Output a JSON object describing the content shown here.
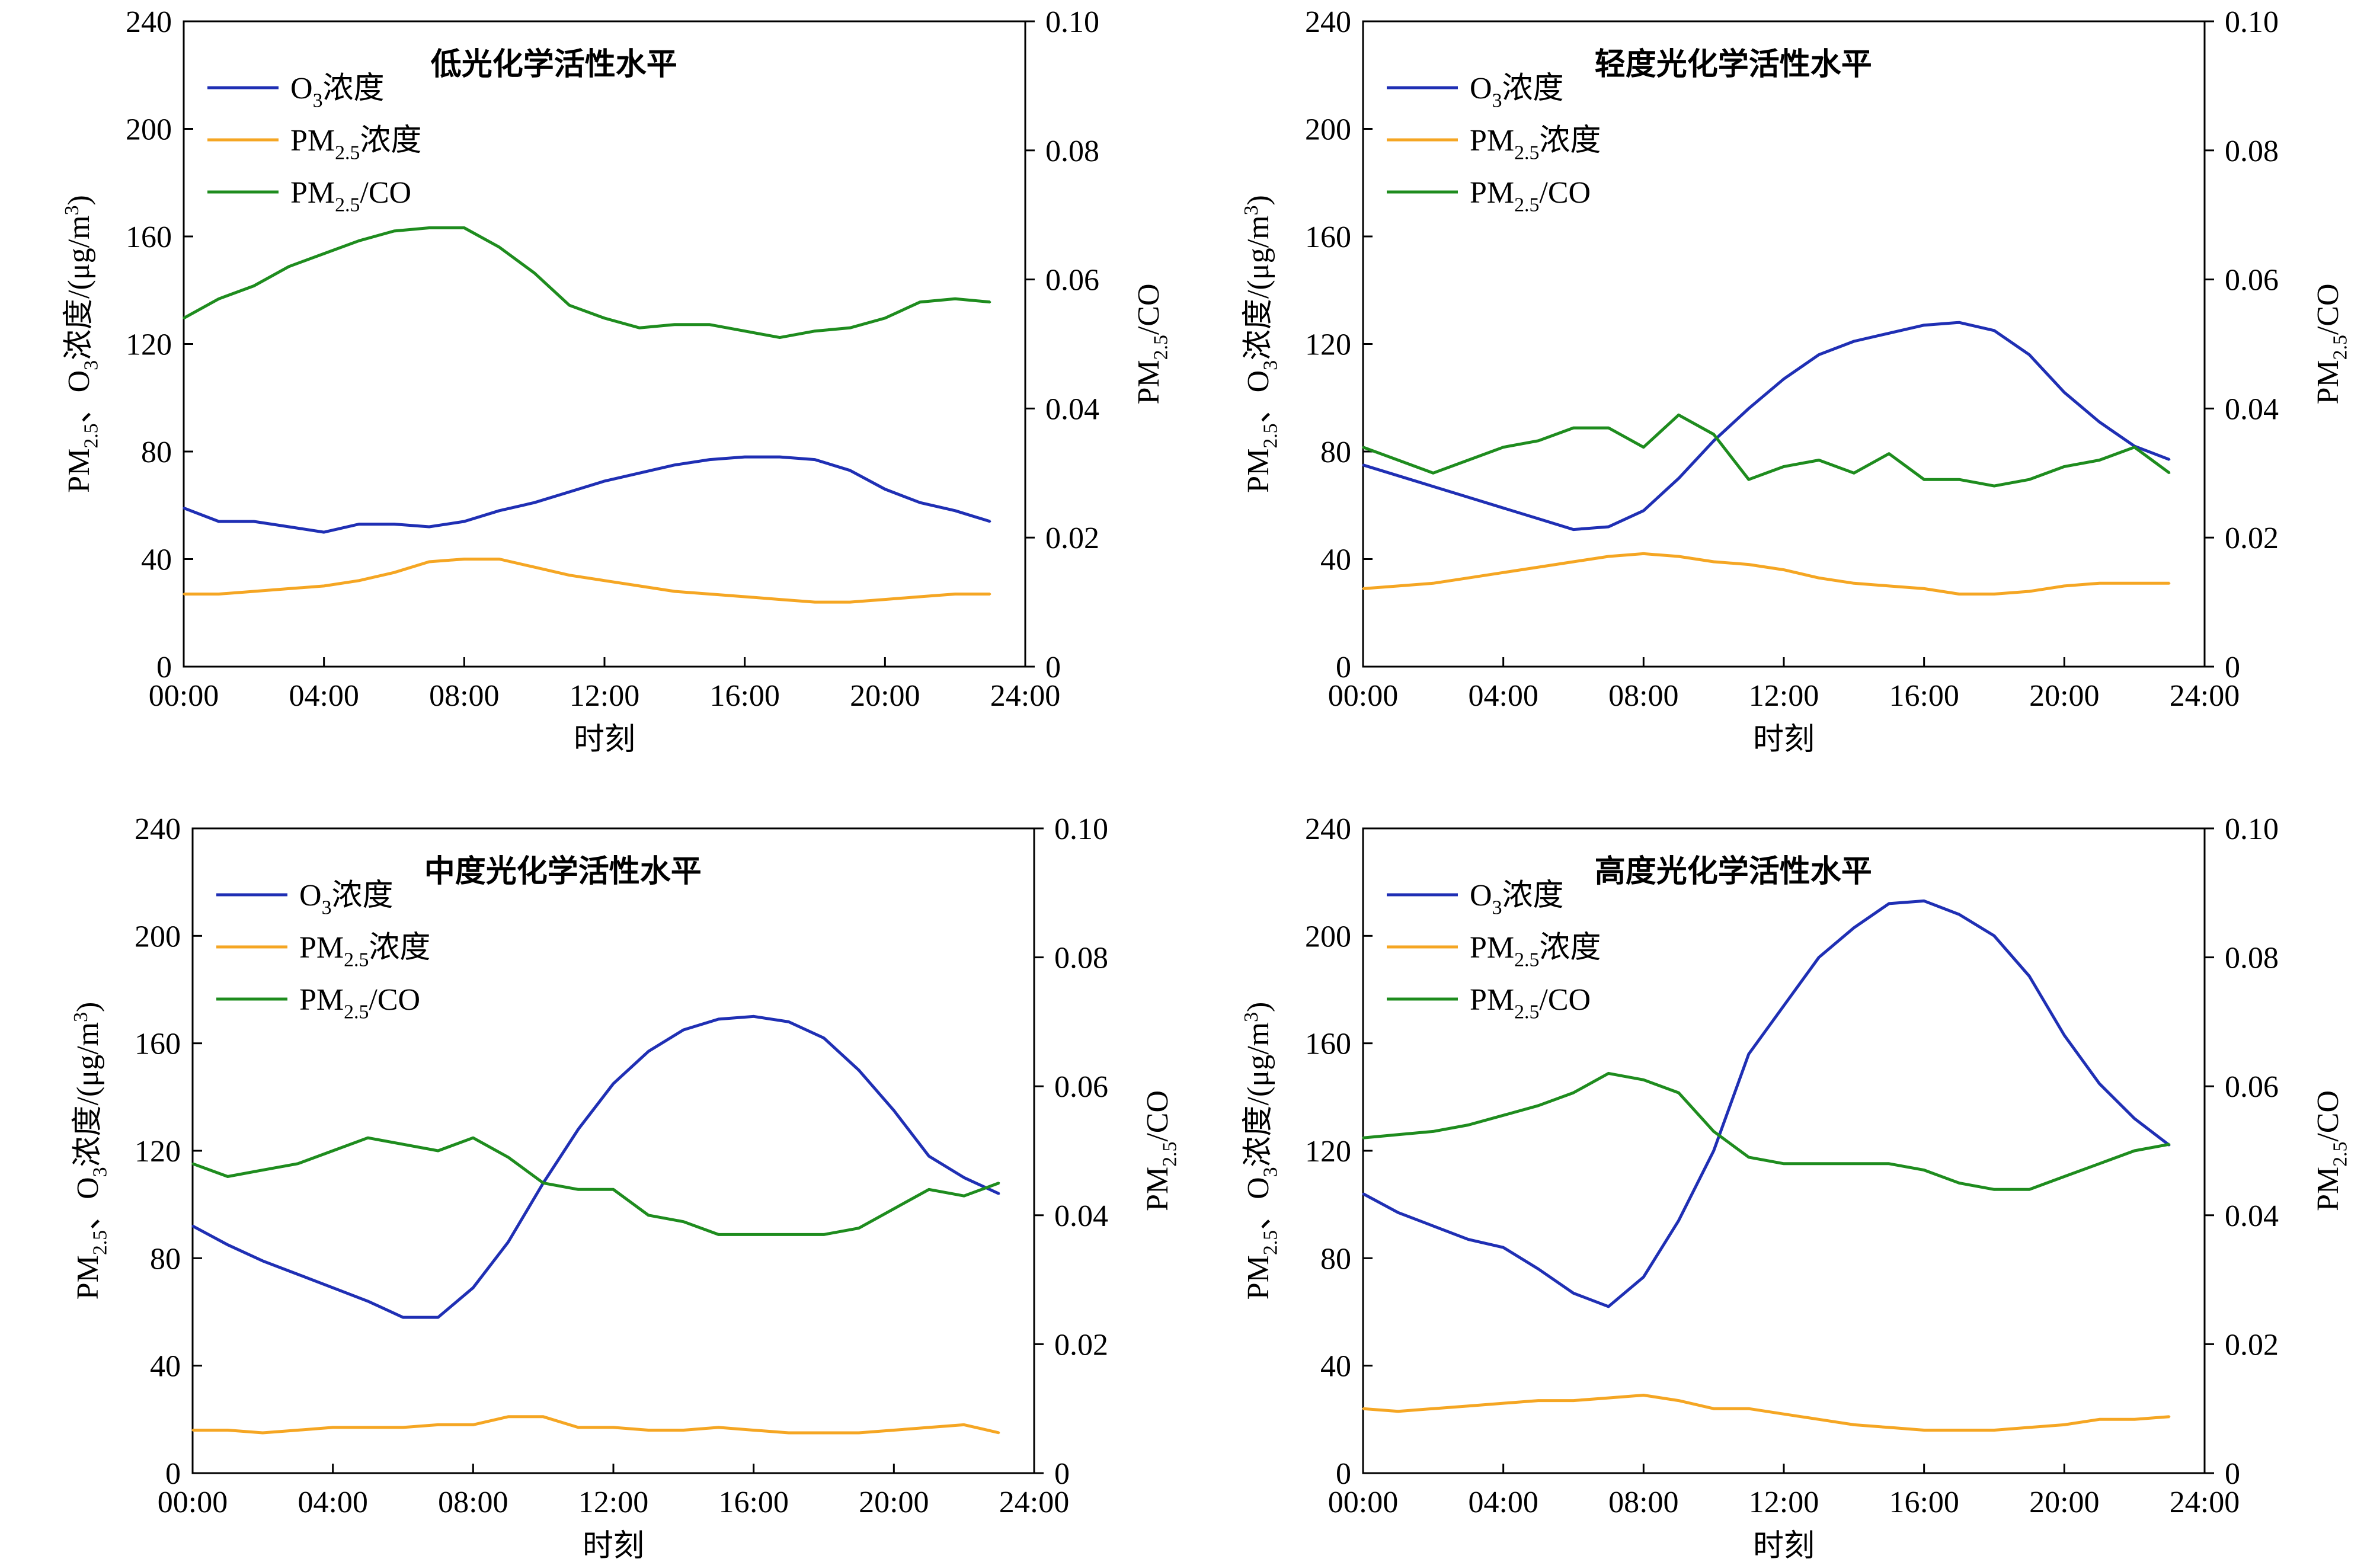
{
  "chart_data": [
    {
      "type": "line",
      "title": "低光化学活性水平",
      "xlabel": "时刻",
      "ylabel_left": "PM₂.₅、O₃浓度/(μg/m³)",
      "ylabel_right": "PM₂.₅/CO",
      "x": [
        0,
        1,
        2,
        3,
        4,
        5,
        6,
        7,
        8,
        9,
        10,
        11,
        12,
        13,
        14,
        15,
        16,
        17,
        18,
        19,
        20,
        21,
        22,
        23
      ],
      "xticks": [
        "00:00",
        "04:00",
        "08:00",
        "12:00",
        "16:00",
        "20:00",
        "24:00"
      ],
      "xlim": [
        0,
        24
      ],
      "ylim_left": [
        0,
        240
      ],
      "yticks_left": [
        "0",
        "40",
        "80",
        "120",
        "160",
        "200",
        "240"
      ],
      "ylim_right": [
        0,
        0.1
      ],
      "yticks_right": [
        "0",
        "0.02",
        "0.04",
        "0.06",
        "0.08",
        "0.10"
      ],
      "legend": "top-left",
      "series": [
        {
          "name": "O₃浓度",
          "color": "#1f2fb4",
          "axis": "left",
          "values": [
            59,
            54,
            54,
            52,
            50,
            53,
            53,
            52,
            54,
            58,
            61,
            65,
            69,
            72,
            75,
            77,
            78,
            78,
            77,
            73,
            66,
            61,
            58,
            54
          ]
        },
        {
          "name": "PM₂.₅浓度",
          "color": "#f5a623",
          "axis": "left",
          "values": [
            27,
            27,
            28,
            29,
            30,
            32,
            35,
            39,
            40,
            40,
            37,
            34,
            32,
            30,
            28,
            27,
            26,
            25,
            24,
            24,
            25,
            26,
            27,
            27
          ]
        },
        {
          "name": "PM₂.₅/CO",
          "color": "#1e8c1e",
          "axis": "right",
          "values": [
            0.054,
            0.057,
            0.059,
            0.062,
            0.064,
            0.066,
            0.0675,
            0.068,
            0.068,
            0.065,
            0.061,
            0.056,
            0.054,
            0.0525,
            0.053,
            0.053,
            0.052,
            0.051,
            0.052,
            0.0525,
            0.054,
            0.0565,
            0.057,
            0.0565
          ]
        }
      ]
    },
    {
      "type": "line",
      "title": "轻度光化学活性水平",
      "xlabel": "时刻",
      "ylabel_left": "PM₂.₅、O₃浓度/(μg/m³)",
      "ylabel_right": "PM₂.₅/CO",
      "x": [
        0,
        1,
        2,
        3,
        4,
        5,
        6,
        7,
        8,
        9,
        10,
        11,
        12,
        13,
        14,
        15,
        16,
        17,
        18,
        19,
        20,
        21,
        22,
        23
      ],
      "xticks": [
        "00:00",
        "04:00",
        "08:00",
        "12:00",
        "16:00",
        "20:00",
        "24:00"
      ],
      "xlim": [
        0,
        24
      ],
      "ylim_left": [
        0,
        240
      ],
      "yticks_left": [
        "0",
        "40",
        "80",
        "120",
        "160",
        "200",
        "240"
      ],
      "ylim_right": [
        0,
        0.1
      ],
      "yticks_right": [
        "0",
        "0.02",
        "0.04",
        "0.06",
        "0.08",
        "0.10"
      ],
      "legend": "top-left",
      "series": [
        {
          "name": "O₃浓度",
          "color": "#1f2fb4",
          "axis": "left",
          "values": [
            75,
            71,
            67,
            63,
            59,
            55,
            51,
            52,
            58,
            70,
            84,
            96,
            107,
            116,
            121,
            124,
            127,
            128,
            125,
            116,
            102,
            91,
            82,
            77
          ]
        },
        {
          "name": "PM₂.₅浓度",
          "color": "#f5a623",
          "axis": "left",
          "values": [
            29,
            30,
            31,
            33,
            35,
            37,
            39,
            41,
            42,
            41,
            39,
            38,
            36,
            33,
            31,
            30,
            29,
            27,
            27,
            28,
            30,
            31,
            31,
            31
          ]
        },
        {
          "name": "PM₂.₅/CO",
          "color": "#1e8c1e",
          "axis": "right",
          "values": [
            0.034,
            0.032,
            0.03,
            0.032,
            0.034,
            0.035,
            0.037,
            0.037,
            0.034,
            0.039,
            0.036,
            0.029,
            0.031,
            0.032,
            0.03,
            0.033,
            0.029,
            0.029,
            0.028,
            0.029,
            0.031,
            0.032,
            0.034,
            0.03
          ]
        }
      ]
    },
    {
      "type": "line",
      "title": "中度光化学活性水平",
      "xlabel": "时刻",
      "ylabel_left": "PM₂.₅、O₃浓度/(μg/m³)",
      "ylabel_right": "PM₂.₅/CO",
      "x": [
        0,
        1,
        2,
        3,
        4,
        5,
        6,
        7,
        8,
        9,
        10,
        11,
        12,
        13,
        14,
        15,
        16,
        17,
        18,
        19,
        20,
        21,
        22,
        23
      ],
      "xticks": [
        "00:00",
        "04:00",
        "08:00",
        "12:00",
        "16:00",
        "20:00",
        "24:00"
      ],
      "xlim": [
        0,
        24
      ],
      "ylim_left": [
        0,
        240
      ],
      "yticks_left": [
        "0",
        "40",
        "80",
        "120",
        "160",
        "200",
        "240"
      ],
      "ylim_right": [
        0,
        0.1
      ],
      "yticks_right": [
        "0",
        "0.02",
        "0.04",
        "0.06",
        "0.08",
        "0.10"
      ],
      "legend": "top-left",
      "series": [
        {
          "name": "O₃浓度",
          "color": "#1f2fb4",
          "axis": "left",
          "values": [
            92,
            85,
            79,
            74,
            69,
            64,
            58,
            58,
            69,
            86,
            108,
            128,
            145,
            157,
            165,
            169,
            170,
            168,
            162,
            150,
            135,
            118,
            110,
            104
          ]
        },
        {
          "name": "PM₂.₅浓度",
          "color": "#f5a623",
          "axis": "left",
          "values": [
            16,
            16,
            15,
            16,
            17,
            17,
            17,
            18,
            18,
            21,
            21,
            17,
            17,
            16,
            16,
            17,
            16,
            15,
            15,
            15,
            16,
            17,
            18,
            15
          ]
        },
        {
          "name": "PM₂.₅/CO",
          "color": "#1e8c1e",
          "axis": "right",
          "values": [
            0.048,
            0.046,
            0.047,
            0.048,
            0.05,
            0.052,
            0.051,
            0.05,
            0.052,
            0.049,
            0.045,
            0.044,
            0.044,
            0.04,
            0.039,
            0.037,
            0.037,
            0.037,
            0.037,
            0.038,
            0.041,
            0.044,
            0.043,
            0.045
          ]
        }
      ]
    },
    {
      "type": "line",
      "title": "高度光化学活性水平",
      "xlabel": "时刻",
      "ylabel_left": "PM₂.₅、O₃浓度/(μg/m³)",
      "ylabel_right": "PM₂.₅/CO",
      "x": [
        0,
        1,
        2,
        3,
        4,
        5,
        6,
        7,
        8,
        9,
        10,
        11,
        12,
        13,
        14,
        15,
        16,
        17,
        18,
        19,
        20,
        21,
        22,
        23
      ],
      "xticks": [
        "00:00",
        "04:00",
        "08:00",
        "12:00",
        "16:00",
        "20:00",
        "24:00"
      ],
      "xlim": [
        0,
        24
      ],
      "ylim_left": [
        0,
        240
      ],
      "yticks_left": [
        "0",
        "40",
        "80",
        "120",
        "160",
        "200",
        "240"
      ],
      "ylim_right": [
        0,
        0.1
      ],
      "yticks_right": [
        "0",
        "0.02",
        "0.04",
        "0.06",
        "0.08",
        "0.10"
      ],
      "legend": "top-left",
      "series": [
        {
          "name": "O₃浓度",
          "color": "#1f2fb4",
          "axis": "left",
          "values": [
            104,
            97,
            92,
            87,
            84,
            76,
            67,
            62,
            73,
            94,
            120,
            156,
            174,
            192,
            203,
            212,
            213,
            208,
            200,
            185,
            163,
            145,
            132,
            122
          ]
        },
        {
          "name": "PM₂.₅浓度",
          "color": "#f5a623",
          "axis": "left",
          "values": [
            24,
            23,
            24,
            25,
            26,
            27,
            27,
            28,
            29,
            27,
            24,
            24,
            22,
            20,
            18,
            17,
            16,
            16,
            16,
            17,
            18,
            20,
            20,
            21
          ]
        },
        {
          "name": "PM₂.₅/CO",
          "color": "#1e8c1e",
          "axis": "right",
          "values": [
            0.052,
            0.0525,
            0.053,
            0.054,
            0.0555,
            0.057,
            0.059,
            0.062,
            0.061,
            0.059,
            0.053,
            0.049,
            0.048,
            0.048,
            0.048,
            0.048,
            0.047,
            0.045,
            0.044,
            0.044,
            0.046,
            0.048,
            0.05,
            0.051
          ]
        }
      ]
    }
  ]
}
